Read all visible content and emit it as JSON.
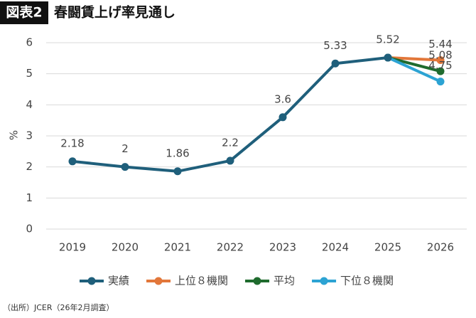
{
  "header": {
    "badge": "図表2",
    "title": "春闘賃上げ率見通し"
  },
  "chart_data": {
    "type": "line",
    "y_label": "%",
    "categories": [
      "2019",
      "2020",
      "2021",
      "2022",
      "2023",
      "2024",
      "2025",
      "2026"
    ],
    "series": [
      {
        "name": "実績",
        "color": "#1f5f7b",
        "values": [
          2.18,
          2,
          1.86,
          2.2,
          3.6,
          5.33,
          5.52,
          null
        ]
      },
      {
        "name": "上位８機関",
        "color": "#e2773a",
        "values": [
          null,
          null,
          null,
          null,
          null,
          null,
          5.52,
          5.44
        ]
      },
      {
        "name": "平均",
        "color": "#1f6b2e",
        "values": [
          null,
          null,
          null,
          null,
          null,
          null,
          5.52,
          5.08
        ]
      },
      {
        "name": "下位８機関",
        "color": "#2ca3d3",
        "values": [
          null,
          null,
          null,
          null,
          null,
          null,
          5.52,
          4.75
        ]
      }
    ],
    "ylim": [
      0,
      6
    ],
    "yticks": [
      0,
      1,
      2,
      3,
      4,
      5,
      6
    ],
    "grid": true,
    "legend": "bottom"
  },
  "source": "（出所）JCER（26年2月調査）"
}
